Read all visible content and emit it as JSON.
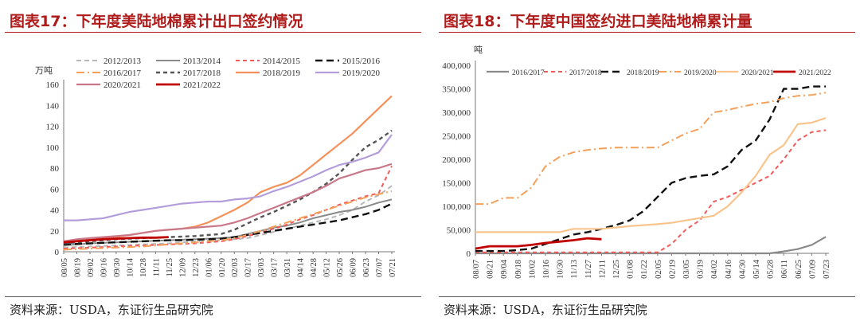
{
  "left": {
    "figure_title": "图表17：下年度美陆地棉累计出口签约情况",
    "source": "资料来源：USDA，东证衍生品研究院",
    "chart_data": {
      "type": "line",
      "unit_label": "万吨",
      "ylim": [
        0,
        160
      ],
      "yticks": [
        0,
        20,
        40,
        60,
        80,
        100,
        120,
        140,
        160
      ],
      "x": [
        "08/05",
        "08/19",
        "09/02",
        "09/16",
        "09/30",
        "10/14",
        "10/28",
        "11/11",
        "11/25",
        "12/09",
        "12/23",
        "01/06",
        "01/20",
        "02/03",
        "02/17",
        "03/03",
        "03/17",
        "03/31",
        "04/14",
        "04/28",
        "05/12",
        "05/26",
        "06/09",
        "06/23",
        "07/07",
        "07/21"
      ],
      "series": [
        {
          "name": "2012/2013",
          "color": "#b8b8b8",
          "dash": "6,4",
          "width": 2,
          "values": [
            4,
            4.5,
            5,
            5.5,
            6,
            6.5,
            7,
            7.5,
            8,
            9,
            10,
            10.5,
            11,
            12,
            13,
            16,
            19,
            22,
            25,
            28,
            31,
            35,
            40,
            48,
            54,
            63
          ]
        },
        {
          "name": "2013/2014",
          "color": "#8a8a8a",
          "dash": "",
          "width": 2,
          "values": [
            6,
            7,
            8,
            8.5,
            9,
            9.5,
            10,
            10.5,
            11,
            11.5,
            12,
            12.5,
            13,
            14,
            17,
            20,
            23,
            25,
            28,
            32,
            35,
            38,
            40,
            43,
            47,
            50
          ]
        },
        {
          "name": "2014/2015",
          "color": "#f05a5a",
          "dash": "5,4",
          "width": 2,
          "values": [
            3,
            3.5,
            4,
            4.5,
            5,
            5.5,
            6,
            6.5,
            7,
            7.5,
            8,
            9,
            10,
            12,
            15,
            18,
            22,
            26,
            31,
            35,
            40,
            45,
            49,
            53,
            56,
            82
          ]
        },
        {
          "name": "2015/2016",
          "color": "#111111",
          "dash": "9,5",
          "width": 2.4,
          "values": [
            7,
            7.5,
            8,
            8.5,
            9,
            9.5,
            10,
            10.5,
            11,
            11,
            11.5,
            12,
            12.5,
            14,
            16,
            18,
            20,
            22,
            24,
            26,
            28,
            30,
            33,
            36,
            40,
            46
          ]
        },
        {
          "name": "2016/2017",
          "color": "#f4a05a",
          "dash": "10,4,2,4",
          "width": 2,
          "values": [
            2,
            2.5,
            3,
            3.5,
            4,
            4.5,
            5,
            6,
            7,
            8,
            9,
            10,
            11,
            13,
            16,
            20,
            24,
            28,
            32,
            36,
            40,
            44,
            48,
            52,
            55,
            58
          ]
        },
        {
          "name": "2017/2018",
          "color": "#555555",
          "dash": "5,4",
          "width": 2.4,
          "values": [
            8,
            9,
            10,
            11,
            12,
            12.5,
            13,
            13.5,
            14,
            14.5,
            15,
            16,
            17,
            21,
            27,
            33,
            38,
            44,
            50,
            57,
            65,
            75,
            88,
            100,
            107,
            116
          ]
        },
        {
          "name": "2018/2019",
          "color": "#f4915a",
          "dash": "",
          "width": 2.2,
          "values": [
            10,
            11,
            12,
            13,
            14,
            16,
            18,
            20,
            21,
            22,
            24,
            28,
            34,
            40,
            47,
            57,
            62,
            66,
            73,
            83,
            93,
            103,
            113,
            125,
            137,
            149
          ]
        },
        {
          "name": "2019/2020",
          "color": "#b39ddb",
          "dash": "",
          "width": 2.2,
          "values": [
            30,
            30,
            31,
            32,
            35,
            38,
            40,
            42,
            44,
            46,
            47,
            48,
            48,
            50,
            51,
            53,
            58,
            62,
            67,
            72,
            78,
            83,
            86,
            90,
            95,
            112
          ]
        },
        {
          "name": "2020/2021",
          "color": "#c9788a",
          "dash": "",
          "width": 2.2,
          "values": [
            10,
            12,
            13,
            14,
            15,
            16,
            18,
            20,
            21,
            22,
            23,
            24,
            25,
            28,
            32,
            37,
            42,
            47,
            52,
            57,
            63,
            70,
            74,
            78,
            80,
            84
          ]
        },
        {
          "name": "2021/2022",
          "color": "#c00000",
          "dash": "",
          "width": 2.8,
          "values": [
            9,
            10,
            11,
            12,
            12.5,
            13,
            13.5,
            13.5,
            14,
            null,
            null,
            null,
            null,
            null,
            null,
            null,
            null,
            null,
            null,
            null,
            null,
            null,
            null,
            null,
            null,
            null
          ]
        }
      ]
    }
  },
  "right": {
    "figure_title": "图表18：下年度中国签约进口美陆地棉累计量",
    "source": "资料来源：USDA，东证衍生品研究院",
    "chart_data": {
      "type": "line",
      "unit_label": "吨",
      "ylim": [
        0,
        400000
      ],
      "yticks": [
        0,
        50000,
        100000,
        150000,
        200000,
        250000,
        300000,
        350000,
        400000
      ],
      "ytick_labels": [
        "0",
        "50,000",
        "100,000",
        "150,000",
        "200,000",
        "250,000",
        "300,000",
        "350,000",
        "400,000"
      ],
      "x": [
        "08/07",
        "08/21",
        "09/04",
        "09/18",
        "10/02",
        "10/16",
        "10/30",
        "11/13",
        "11/27",
        "12/11",
        "12/25",
        "01/08",
        "01/22",
        "02/05",
        "02/19",
        "03/05",
        "03/19",
        "04/02",
        "04/16",
        "04/30",
        "05/14",
        "05/28",
        "06/11",
        "06/25",
        "07/09",
        "07/23"
      ],
      "series": [
        {
          "name": "2016/2017",
          "color": "#8a8a8a",
          "dash": "",
          "width": 2.2,
          "values": [
            0,
            0,
            0,
            0,
            0,
            0,
            0,
            0,
            0,
            0,
            0,
            0,
            0,
            0,
            0,
            0,
            0,
            0,
            0,
            0,
            0,
            0,
            4000,
            9000,
            18000,
            35000
          ]
        },
        {
          "name": "2017/2018",
          "color": "#f05a5a",
          "dash": "5,4",
          "width": 2,
          "values": [
            2000,
            2000,
            2000,
            2000,
            2000,
            2000,
            2000,
            2000,
            2000,
            2000,
            2000,
            2000,
            2000,
            2000,
            20000,
            50000,
            70000,
            110000,
            120000,
            135000,
            150000,
            165000,
            200000,
            240000,
            258000,
            262000
          ]
        },
        {
          "name": "2018/2019",
          "color": "#111111",
          "dash": "9,5",
          "width": 2.4,
          "values": [
            5000,
            5000,
            5000,
            7000,
            10000,
            20000,
            30000,
            40000,
            45000,
            52000,
            60000,
            70000,
            90000,
            120000,
            150000,
            160000,
            165000,
            168000,
            185000,
            220000,
            240000,
            285000,
            350000,
            350000,
            355000,
            355000
          ]
        },
        {
          "name": "2019/2020",
          "color": "#f4a05a",
          "dash": "10,4,2,4",
          "width": 2,
          "values": [
            105000,
            105000,
            118000,
            118000,
            140000,
            185000,
            205000,
            215000,
            220000,
            223000,
            225000,
            225000,
            225000,
            225000,
            240000,
            255000,
            265000,
            300000,
            305000,
            312000,
            318000,
            322000,
            330000,
            335000,
            337000,
            342000
          ]
        },
        {
          "name": "2020/2021",
          "color": "#f9c48c",
          "dash": "",
          "width": 2.2,
          "values": [
            45000,
            45000,
            45000,
            45000,
            45000,
            45000,
            45000,
            52000,
            52000,
            52000,
            55000,
            58000,
            60000,
            62000,
            65000,
            70000,
            75000,
            80000,
            100000,
            130000,
            165000,
            210000,
            230000,
            275000,
            278000,
            288000
          ]
        },
        {
          "name": "2021/2022",
          "color": "#c00000",
          "dash": "",
          "width": 2.8,
          "values": [
            10000,
            15000,
            15000,
            15000,
            18000,
            22000,
            25000,
            28000,
            32000,
            30000,
            null,
            null,
            null,
            null,
            null,
            null,
            null,
            null,
            null,
            null,
            null,
            null,
            null,
            null,
            null,
            null
          ]
        }
      ]
    }
  }
}
